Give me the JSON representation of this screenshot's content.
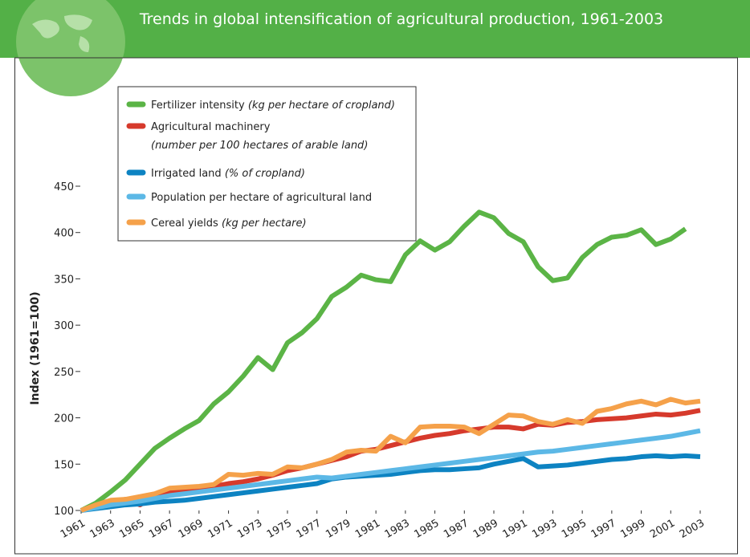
{
  "chart_data": {
    "type": "line",
    "title": "Trends in global intensification of agricultural production, 1961-2003",
    "ylabel": "Index (1961=100)",
    "x": [
      1961,
      1962,
      1963,
      1964,
      1965,
      1966,
      1967,
      1968,
      1969,
      1970,
      1971,
      1972,
      1973,
      1974,
      1975,
      1976,
      1977,
      1978,
      1979,
      1980,
      1981,
      1982,
      1983,
      1984,
      1985,
      1986,
      1987,
      1988,
      1989,
      1990,
      1991,
      1992,
      1993,
      1994,
      1995,
      1996,
      1997,
      1998,
      1999,
      2000,
      2001,
      2002,
      2003
    ],
    "xlim": [
      1961,
      2003
    ],
    "xticks": [
      1961,
      1963,
      1965,
      1967,
      1969,
      1971,
      1973,
      1975,
      1977,
      1979,
      1981,
      1983,
      1985,
      1987,
      1989,
      1991,
      1993,
      1995,
      1997,
      1999,
      2001,
      2003
    ],
    "ylim": [
      100,
      450
    ],
    "yticks": [
      100,
      150,
      200,
      250,
      300,
      350,
      400,
      450
    ],
    "series": [
      {
        "name": "Fertilizer intensity",
        "unit": "(kg per hectare of cropland)",
        "color": "#5bb446",
        "values": [
          100,
          108,
          120,
          133,
          150,
          167,
          178,
          188,
          197,
          215,
          228,
          245,
          265,
          252,
          281,
          292,
          307,
          331,
          341,
          354,
          349,
          347,
          376,
          391,
          381,
          390,
          407,
          422,
          416,
          399,
          390,
          363,
          348,
          351,
          373,
          387,
          395,
          397,
          403,
          387,
          393,
          404,
          null
        ]
      },
      {
        "name": "Agricultural machinery",
        "unit": "(number per 100 hectares of arable land)",
        "color": "#d63a2c",
        "values": [
          100,
          105,
          109,
          112,
          106,
          116,
          120,
          122,
          124,
          126,
          129,
          131,
          134,
          138,
          143,
          146,
          150,
          154,
          158,
          164,
          166,
          170,
          174,
          178,
          181,
          183,
          186,
          188,
          190,
          190,
          188,
          193,
          192,
          195,
          196,
          198,
          199,
          200,
          202,
          204,
          203,
          205,
          208
        ]
      },
      {
        "name": "Irrigated land",
        "unit": "(% of cropland)",
        "color": "#0d83c2",
        "values": [
          100,
          102,
          104,
          106,
          107,
          109,
          110,
          111,
          113,
          115,
          117,
          119,
          121,
          123,
          125,
          127,
          129,
          134,
          136,
          137,
          138,
          139,
          141,
          143,
          144,
          144,
          145,
          146,
          150,
          153,
          156,
          147,
          148,
          149,
          151,
          153,
          155,
          156,
          158,
          159,
          158,
          159,
          158
        ]
      },
      {
        "name": "Population per hectare of agricultural land",
        "color": "#5cb8e6",
        "values": [
          100,
          103,
          106,
          108,
          110,
          113,
          116,
          118,
          120,
          122,
          124,
          126,
          128,
          130,
          132,
          134,
          136,
          135,
          137,
          139,
          141,
          143,
          145,
          147,
          149,
          151,
          153,
          155,
          157,
          159,
          161,
          163,
          164,
          166,
          168,
          170,
          172,
          174,
          176,
          178,
          180,
          183,
          186
        ]
      },
      {
        "name": "Cereal yields",
        "unit": "(kg per hectare)",
        "color": "#f5a14a",
        "values": [
          100,
          106,
          111,
          112,
          115,
          118,
          124,
          125,
          126,
          128,
          139,
          138,
          140,
          139,
          147,
          146,
          150,
          155,
          163,
          165,
          164,
          180,
          173,
          190,
          191,
          191,
          190,
          183,
          193,
          203,
          202,
          196,
          193,
          198,
          194,
          207,
          210,
          215,
          218,
          214,
          220,
          216,
          218
        ]
      }
    ]
  }
}
